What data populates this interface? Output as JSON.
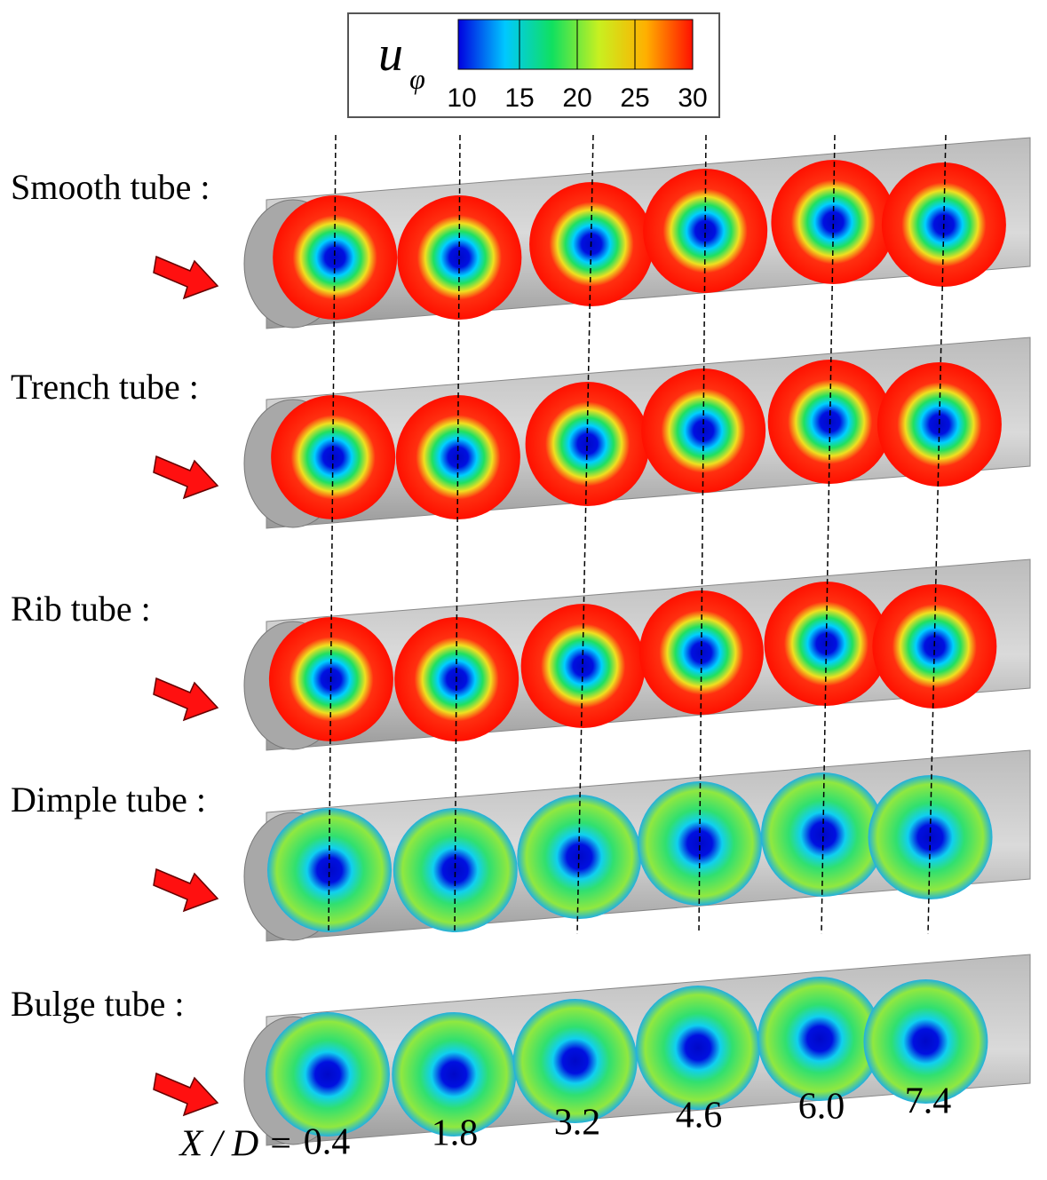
{
  "colorbar": {
    "symbol": "u",
    "subscript": "φ",
    "range": [
      10,
      30
    ],
    "ticks": [
      10,
      15,
      20,
      25,
      30
    ],
    "colors": [
      "#0000e0",
      "#00c8ff",
      "#10e060",
      "#c8f020",
      "#ffb000",
      "#ff1000"
    ]
  },
  "rows": [
    {
      "label": "Smooth tube :"
    },
    {
      "label": "Trench tube :"
    },
    {
      "label": "Rib tube :"
    },
    {
      "label": "Dimple tube :"
    },
    {
      "label": "Bulge tube :"
    }
  ],
  "positions": {
    "prefix": "X / D =",
    "labels": [
      "0.4",
      "1.8",
      "3.2",
      "4.6",
      "6.0",
      "7.4"
    ]
  }
}
